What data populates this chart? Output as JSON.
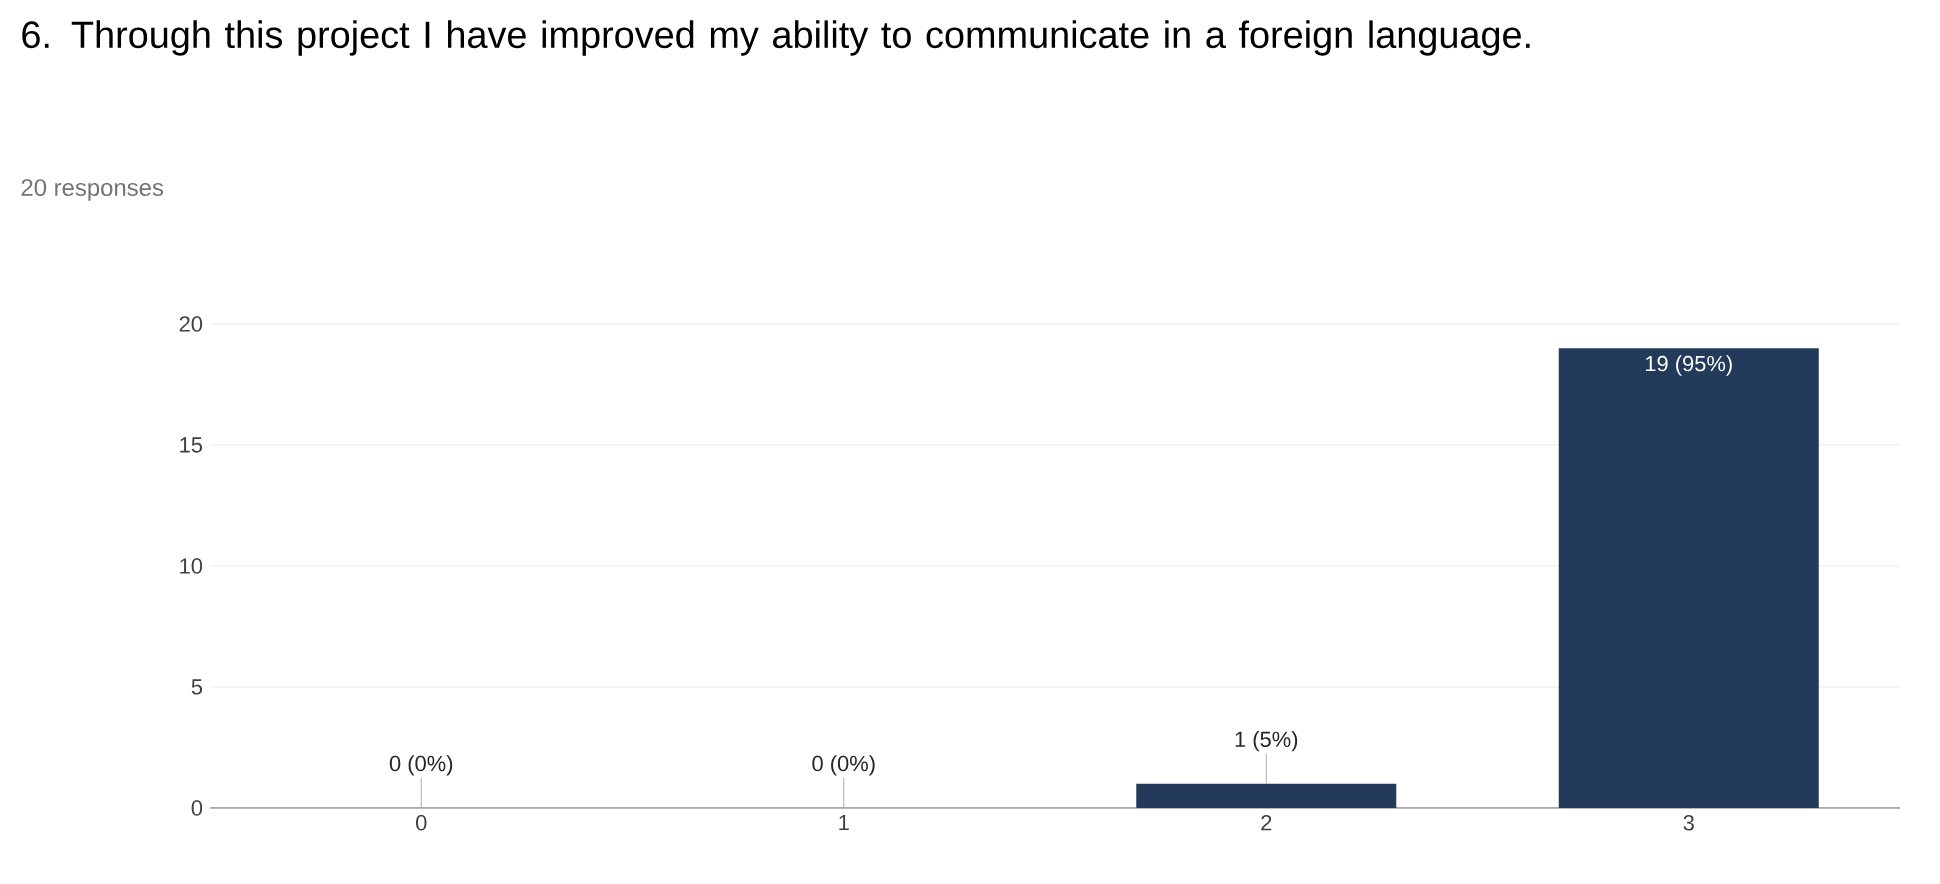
{
  "chart_data": {
    "type": "bar",
    "title": "6. Through this project I have improved my ability to communicate in a foreign language.",
    "subtitle": "20 responses",
    "categories": [
      "0",
      "1",
      "2",
      "3"
    ],
    "values": [
      0,
      0,
      1,
      19
    ],
    "value_labels": [
      "0 (0%)",
      "0 (0%)",
      "1 (5%)",
      "19 (95%)"
    ],
    "color": "#233a5a",
    "ylim": [
      0,
      20
    ],
    "yticks": [
      0,
      5,
      10,
      15,
      20
    ],
    "grid": "y"
  }
}
